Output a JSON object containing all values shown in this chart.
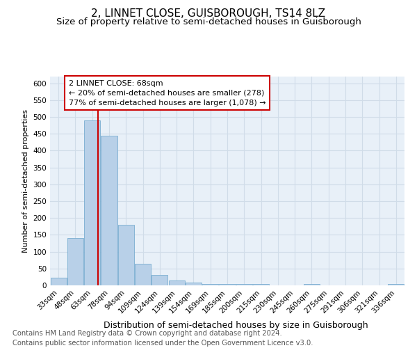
{
  "title": "2, LINNET CLOSE, GUISBOROUGH, TS14 8LZ",
  "subtitle": "Size of property relative to semi-detached houses in Guisborough",
  "xlabel": "Distribution of semi-detached houses by size in Guisborough",
  "ylabel": "Number of semi-detached properties",
  "categories": [
    "33sqm",
    "48sqm",
    "63sqm",
    "78sqm",
    "94sqm",
    "109sqm",
    "124sqm",
    "139sqm",
    "154sqm",
    "169sqm",
    "185sqm",
    "200sqm",
    "215sqm",
    "230sqm",
    "245sqm",
    "260sqm",
    "275sqm",
    "291sqm",
    "306sqm",
    "321sqm",
    "336sqm"
  ],
  "values": [
    22,
    140,
    490,
    445,
    180,
    65,
    32,
    15,
    8,
    5,
    5,
    5,
    5,
    0,
    0,
    5,
    0,
    0,
    0,
    0,
    5
  ],
  "bar_color": "#b8d0e8",
  "bar_edge_color": "#7aadd0",
  "grid_color": "#d0dce8",
  "bg_color": "#e8f0f8",
  "ylim": [
    0,
    620
  ],
  "annotation_line1": "2 LINNET CLOSE: 68sqm",
  "annotation_line2": "← 20% of semi-detached houses are smaller (278)",
  "annotation_line3": "77% of semi-detached houses are larger (1,078) →",
  "annotation_box_color": "#cc0000",
  "footer_line1": "Contains HM Land Registry data © Crown copyright and database right 2024.",
  "footer_line2": "Contains public sector information licensed under the Open Government Licence v3.0.",
  "title_fontsize": 11,
  "subtitle_fontsize": 9.5,
  "ylabel_fontsize": 8,
  "xlabel_fontsize": 9,
  "tick_fontsize": 7.5,
  "footer_fontsize": 7.2
}
